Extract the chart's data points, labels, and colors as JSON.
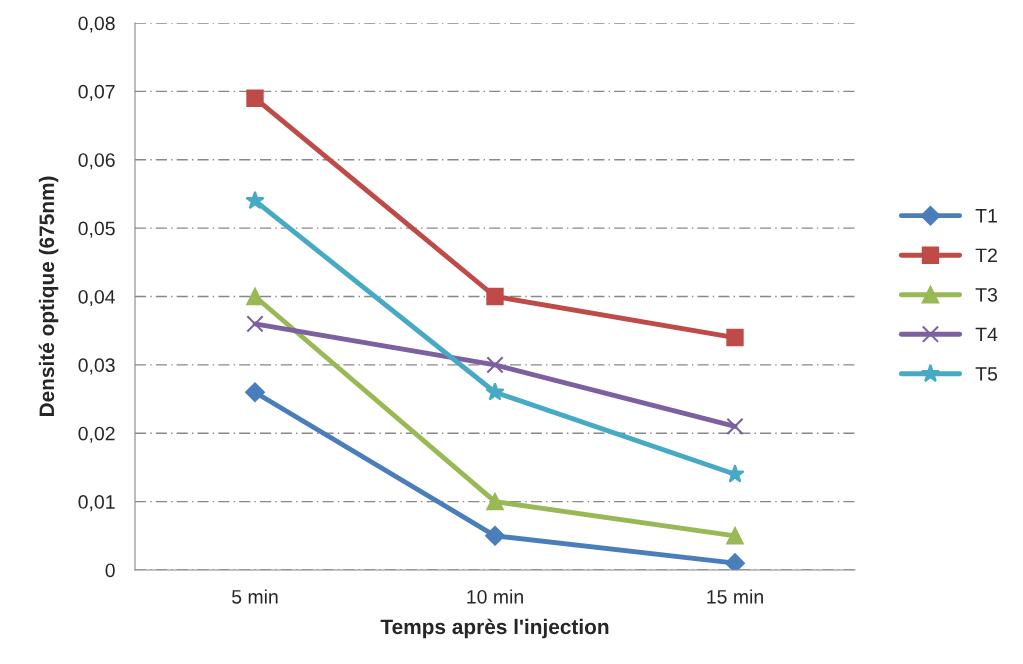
{
  "chart_data": {
    "type": "line",
    "xlabel": "Temps après l'injection",
    "ylabel": "Densité optique (675nm)",
    "categories": [
      "5 min",
      "10 min",
      "15 min"
    ],
    "series": [
      {
        "name": "T1",
        "color": "#4a7ebb",
        "marker": "diamond",
        "values": [
          0.026,
          0.005,
          0.001
        ]
      },
      {
        "name": "T2",
        "color": "#be4b48",
        "marker": "square",
        "values": [
          0.069,
          0.04,
          0.034
        ]
      },
      {
        "name": "T3",
        "color": "#98b954",
        "marker": "triangle",
        "values": [
          0.04,
          0.01,
          0.005
        ]
      },
      {
        "name": "T4",
        "color": "#7d60a0",
        "marker": "cross",
        "values": [
          0.036,
          0.03,
          0.021
        ]
      },
      {
        "name": "T5",
        "color": "#46aac5",
        "marker": "star",
        "values": [
          0.054,
          0.026,
          0.014
        ]
      }
    ],
    "ylim": [
      0,
      0.08
    ],
    "yticks": [
      0,
      {
        "value": 0.01,
        "label": "0,01"
      },
      {
        "value": 0.02,
        "label": "0,02"
      },
      {
        "value": 0.03,
        "label": "0,03"
      },
      {
        "value": 0.04,
        "label": "0,04"
      },
      {
        "value": 0.05,
        "label": "0,05"
      },
      {
        "value": 0.06,
        "label": "0,06"
      },
      {
        "value": 0.07,
        "label": "0,07"
      },
      {
        "value": 0.08,
        "label": "0,08"
      }
    ],
    "grid": "y",
    "legend": "right",
    "line_style": "solid"
  }
}
